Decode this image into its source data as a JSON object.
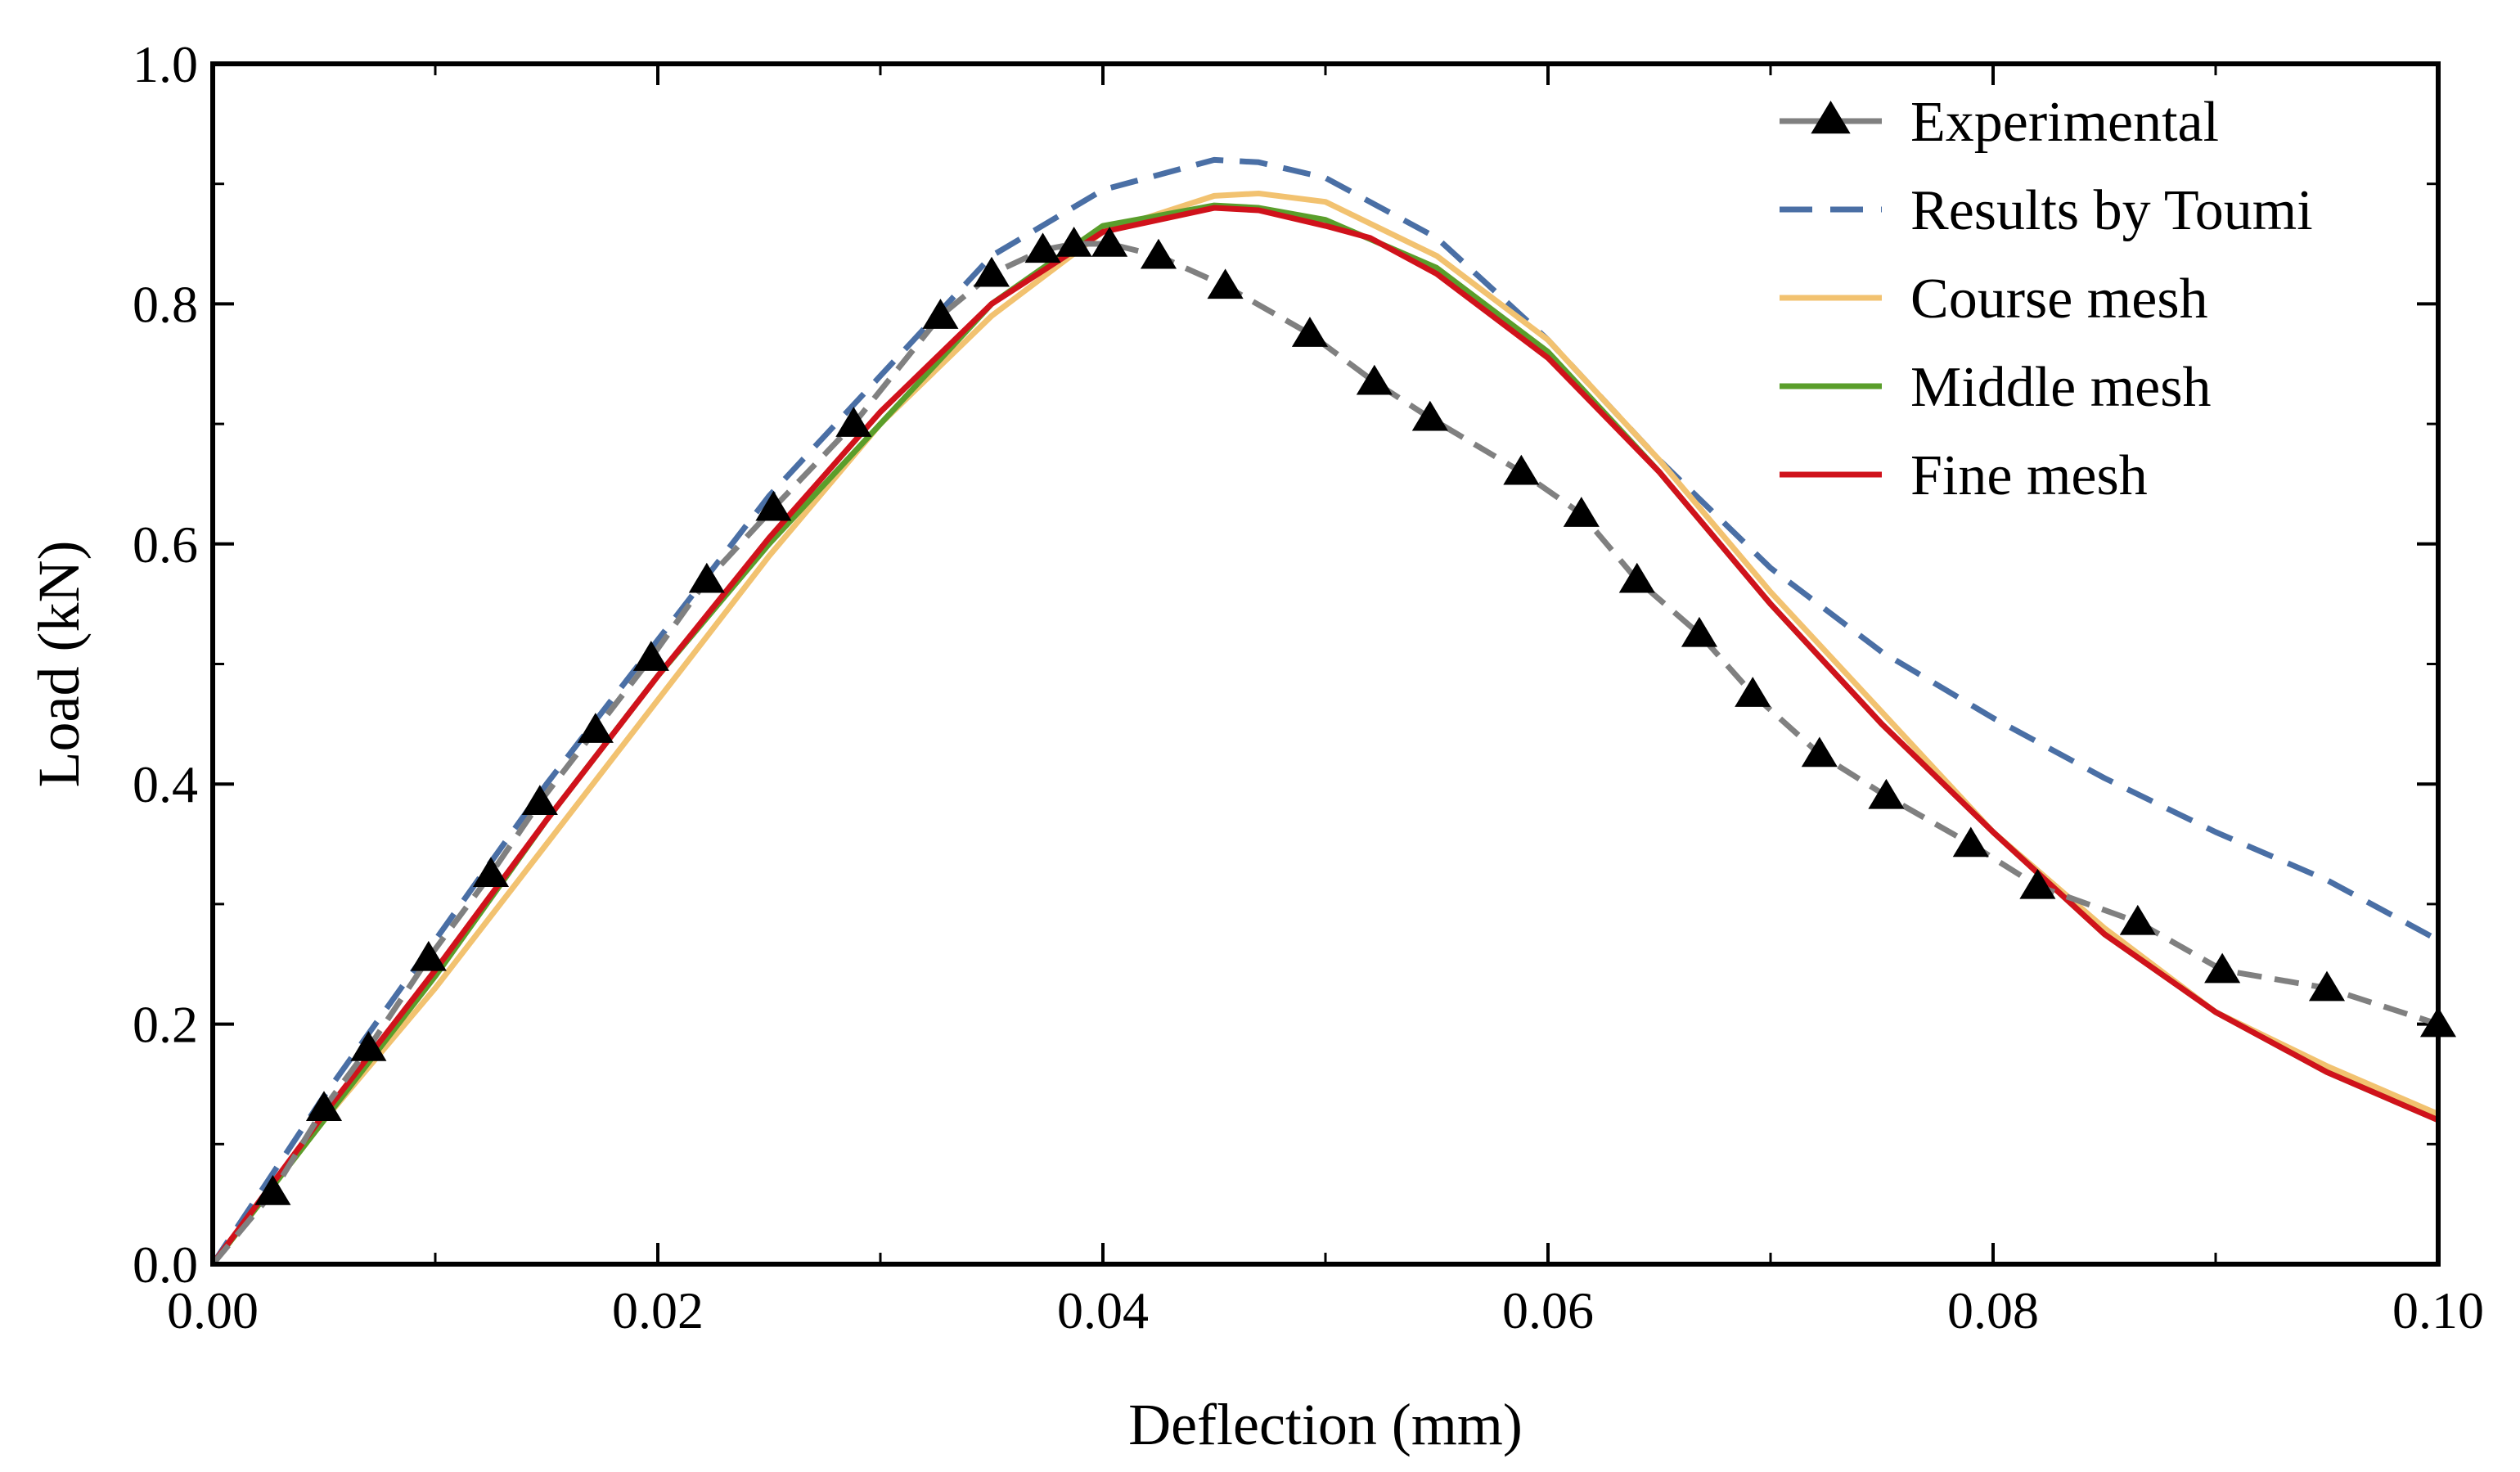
{
  "chart_data": {
    "type": "line",
    "title": "",
    "xlabel": "Deflection (mm)",
    "ylabel": "Load (kN)",
    "xlim": [
      0,
      0.1
    ],
    "ylim": [
      0,
      1.0
    ],
    "xticks": [
      "0.00",
      "0.02",
      "0.04",
      "0.06",
      "0.08",
      "0.10"
    ],
    "yticks": [
      "0.0",
      "0.2",
      "0.4",
      "0.6",
      "0.8",
      "1.0"
    ],
    "grid": false,
    "legend_position": "top-right",
    "series": [
      {
        "name": "Experimental",
        "color": "#808080",
        "style": "dashed-markers",
        "marker": "triangle",
        "x": [
          0,
          0.0027,
          0.005,
          0.007,
          0.0097,
          0.0125,
          0.0147,
          0.0172,
          0.0197,
          0.0222,
          0.0252,
          0.0288,
          0.0327,
          0.035,
          0.0373,
          0.0387,
          0.0403,
          0.0425,
          0.0455,
          0.0493,
          0.0522,
          0.0547,
          0.0588,
          0.0615,
          0.064,
          0.0668,
          0.0692,
          0.0722,
          0.0752,
          0.079,
          0.082,
          0.0865,
          0.0903,
          0.095,
          0.1
        ],
        "y": [
          0,
          0.06,
          0.13,
          0.18,
          0.255,
          0.325,
          0.385,
          0.445,
          0.505,
          0.57,
          0.63,
          0.7,
          0.79,
          0.825,
          0.845,
          0.85,
          0.85,
          0.84,
          0.815,
          0.775,
          0.735,
          0.705,
          0.66,
          0.625,
          0.57,
          0.525,
          0.475,
          0.425,
          0.39,
          0.35,
          0.315,
          0.285,
          0.245,
          0.23,
          0.2
        ]
      },
      {
        "name": "Results by Toumi",
        "color": "#4a6fa5",
        "style": "dashed",
        "x": [
          0,
          0.005,
          0.01,
          0.015,
          0.02,
          0.025,
          0.03,
          0.035,
          0.04,
          0.045,
          0.047,
          0.05,
          0.055,
          0.06,
          0.065,
          0.07,
          0.075,
          0.08,
          0.085,
          0.09,
          0.095,
          0.1
        ],
        "y": [
          0,
          0.14,
          0.27,
          0.4,
          0.52,
          0.64,
          0.74,
          0.84,
          0.895,
          0.92,
          0.918,
          0.905,
          0.855,
          0.77,
          0.67,
          0.58,
          0.51,
          0.455,
          0.405,
          0.36,
          0.32,
          0.27
        ]
      },
      {
        "name": "Course mesh",
        "color": "#f2c270",
        "style": "solid",
        "x": [
          0,
          0.005,
          0.01,
          0.015,
          0.02,
          0.025,
          0.03,
          0.035,
          0.04,
          0.045,
          0.047,
          0.05,
          0.055,
          0.06,
          0.065,
          0.07,
          0.075,
          0.08,
          0.085,
          0.09,
          0.095,
          0.1
        ],
        "y": [
          0,
          0.12,
          0.23,
          0.35,
          0.47,
          0.59,
          0.7,
          0.79,
          0.86,
          0.89,
          0.892,
          0.885,
          0.84,
          0.77,
          0.67,
          0.56,
          0.46,
          0.36,
          0.28,
          0.21,
          0.165,
          0.125
        ]
      },
      {
        "name": "Middle mesh",
        "color": "#5a9e2b",
        "style": "solid",
        "x": [
          0,
          0.005,
          0.01,
          0.015,
          0.02,
          0.025,
          0.03,
          0.035,
          0.04,
          0.045,
          0.047,
          0.05,
          0.055,
          0.06,
          0.065,
          0.07,
          0.075,
          0.08,
          0.085,
          0.09,
          0.095,
          0.1
        ],
        "y": [
          0,
          0.12,
          0.24,
          0.37,
          0.49,
          0.6,
          0.7,
          0.8,
          0.865,
          0.882,
          0.88,
          0.87,
          0.83,
          0.76,
          0.66,
          0.55,
          0.45,
          0.36,
          0.275,
          0.21,
          0.16,
          0.12
        ]
      },
      {
        "name": "Fine mesh",
        "color": "#d0121b",
        "style": "solid",
        "x": [
          0,
          0.005,
          0.01,
          0.015,
          0.02,
          0.025,
          0.03,
          0.035,
          0.04,
          0.045,
          0.047,
          0.05,
          0.052,
          0.055,
          0.06,
          0.065,
          0.07,
          0.075,
          0.08,
          0.085,
          0.09,
          0.095,
          0.1
        ],
        "y": [
          0,
          0.125,
          0.245,
          0.37,
          0.49,
          0.605,
          0.71,
          0.8,
          0.86,
          0.88,
          0.878,
          0.865,
          0.855,
          0.825,
          0.755,
          0.66,
          0.55,
          0.45,
          0.36,
          0.275,
          0.21,
          0.16,
          0.12
        ]
      }
    ]
  }
}
